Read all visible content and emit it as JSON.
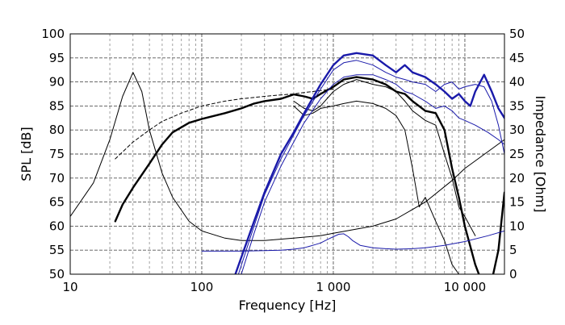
{
  "chart_data": {
    "type": "line",
    "xlabel": "Frequency [Hz]",
    "ylabel": "SPL [dB]",
    "y2label": "Impedance [Ohm]",
    "x_scale": "log",
    "xlim": [
      10,
      20000
    ],
    "ylim": [
      50,
      100
    ],
    "y2lim": [
      0,
      50
    ],
    "grid": true,
    "x_ticks": [
      10,
      100,
      1000,
      10000
    ],
    "x_tick_labels": [
      "10",
      "100",
      "1 000",
      "10 000"
    ],
    "y_ticks": [
      50,
      55,
      60,
      65,
      70,
      75,
      80,
      85,
      90,
      95,
      100
    ],
    "y2_ticks": [
      0,
      5,
      10,
      15,
      20,
      25,
      30,
      35,
      40,
      45,
      50
    ],
    "series": [
      {
        "axis": "left",
        "color": "#000000",
        "width": 2.4,
        "dash": "",
        "x": [
          22,
          25,
          30,
          40,
          50,
          60,
          80,
          100,
          150,
          200,
          250,
          300,
          400,
          500,
          600,
          700,
          800,
          1000,
          1200,
          1500,
          2000,
          2500,
          3000,
          3500,
          4000,
          5000,
          6000,
          7000,
          8000,
          9000,
          10000,
          12000,
          15000,
          18000,
          20000
        ],
        "y": [
          61,
          64.5,
          68,
          73,
          77,
          79.5,
          81.5,
          82.3,
          83.5,
          84.5,
          85.5,
          86,
          86.5,
          87.4,
          87,
          86.5,
          87.5,
          89,
          90.5,
          91,
          90.5,
          89.5,
          88,
          87.5,
          86,
          84,
          83.5,
          80,
          72,
          66,
          60,
          52,
          45,
          55,
          67
        ]
      },
      {
        "axis": "left",
        "color": "#000000",
        "width": 1,
        "dash": "4 3",
        "x": [
          22,
          30,
          40,
          50,
          70,
          100,
          150,
          200,
          300,
          400,
          500,
          600,
          700,
          800,
          1000
        ],
        "y": [
          74,
          77.5,
          80,
          81.8,
          83.5,
          85,
          86,
          86.5,
          87,
          87.3,
          87.5,
          87.8,
          88,
          88.2,
          88.5
        ]
      },
      {
        "axis": "left",
        "color": "#000000",
        "width": 1,
        "dash": "",
        "x": [
          500,
          600,
          700,
          800,
          1000,
          1200,
          1500,
          2000,
          2500,
          3000,
          3500,
          4000,
          5000,
          6000,
          7000,
          8000,
          9000,
          10000,
          12000
        ],
        "y": [
          86,
          84.5,
          84,
          85,
          88,
          89.5,
          90.5,
          89.5,
          89,
          88,
          86,
          84,
          82,
          81,
          75,
          70,
          64,
          62,
          58
        ]
      },
      {
        "axis": "left",
        "color": "#000000",
        "width": 1,
        "dash": "",
        "x": [
          500,
          600,
          700,
          800,
          1000,
          1200,
          1500,
          2000,
          2500,
          3000,
          3500,
          4000,
          4500,
          5000,
          6000,
          7000,
          8000,
          9000,
          10000
        ],
        "y": [
          85,
          83,
          83.5,
          84.5,
          85,
          85.5,
          86,
          85.5,
          84.5,
          83,
          80,
          72,
          64,
          66,
          61,
          57,
          52,
          50,
          50
        ]
      },
      {
        "axis": "right",
        "color": "#000000",
        "width": 1,
        "dash": "",
        "x": [
          10,
          15,
          20,
          25,
          30,
          35,
          40,
          50,
          60,
          80,
          100,
          150,
          200,
          300,
          500,
          800,
          1000,
          2000,
          3000,
          5000,
          8000,
          10000,
          15000,
          20000
        ],
        "y": [
          12,
          19,
          28,
          37,
          42,
          38,
          30,
          21,
          16,
          11,
          9,
          7.5,
          7,
          7,
          7.5,
          8,
          8.5,
          10,
          11.5,
          15,
          19.5,
          22,
          25.5,
          28
        ]
      },
      {
        "axis": "left",
        "color": "#1a1aaa",
        "width": 2.4,
        "dash": "",
        "x": [
          180,
          250,
          300,
          400,
          500,
          600,
          800,
          1000,
          1200,
          1500,
          2000,
          2500,
          3000,
          3500,
          4000,
          5000,
          6000,
          7000,
          8000,
          9000,
          10000,
          11000,
          12000,
          14000,
          16000,
          18000,
          20000
        ],
        "y": [
          50,
          61,
          67,
          75,
          79.5,
          83.5,
          89.5,
          93.5,
          95.5,
          96,
          95.5,
          93.5,
          92,
          93.5,
          92,
          91,
          89.5,
          88,
          86.5,
          87.5,
          86,
          85,
          88,
          91.5,
          88,
          84.5,
          82.5
        ]
      },
      {
        "axis": "left",
        "color": "#1a1aaa",
        "width": 1,
        "dash": "",
        "x": [
          190,
          250,
          300,
          400,
          500,
          600,
          800,
          1000,
          1200,
          1500,
          2000,
          2500,
          3000,
          3500,
          4000,
          5000,
          6000,
          7000,
          8000,
          9000,
          10000,
          12000,
          14000,
          16000,
          18000,
          20000
        ],
        "y": [
          50,
          60,
          66.5,
          74,
          79,
          83,
          88.5,
          92.5,
          94,
          94.5,
          93.5,
          92,
          91,
          90.5,
          90,
          89.5,
          88,
          89.5,
          90,
          88.5,
          89,
          89.5,
          89,
          86,
          81,
          75
        ]
      },
      {
        "axis": "left",
        "color": "#1a1aaa",
        "width": 1,
        "dash": "",
        "x": [
          200,
          250,
          300,
          400,
          500,
          600,
          800,
          1000,
          1200,
          1500,
          2000,
          2500,
          3000,
          3500,
          4000,
          5000,
          6000,
          7000,
          8000,
          9000,
          10000,
          12000,
          15000,
          18000,
          20000
        ],
        "y": [
          50,
          58.5,
          65,
          72.5,
          77.5,
          81.5,
          86.5,
          89.5,
          91,
          91.5,
          91.5,
          90.5,
          89.5,
          88,
          87.5,
          86,
          84.5,
          85,
          84,
          82.5,
          82,
          81,
          79.5,
          78,
          77
        ]
      },
      {
        "axis": "right",
        "color": "#1a1aaa",
        "width": 1,
        "dash": "",
        "x": [
          100,
          150,
          200,
          300,
          400,
          500,
          600,
          700,
          800,
          900,
          1000,
          1100,
          1200,
          1300,
          1400,
          1600,
          2000,
          2500,
          3000,
          4000,
          5000,
          7000,
          10000,
          15000,
          20000
        ],
        "y": [
          4.8,
          4.8,
          4.8,
          4.9,
          5,
          5.2,
          5.5,
          6,
          6.5,
          7.2,
          7.8,
          8.3,
          8.4,
          7.8,
          7,
          6,
          5.5,
          5.3,
          5.2,
          5.3,
          5.5,
          6,
          6.8,
          8,
          9
        ]
      }
    ]
  }
}
